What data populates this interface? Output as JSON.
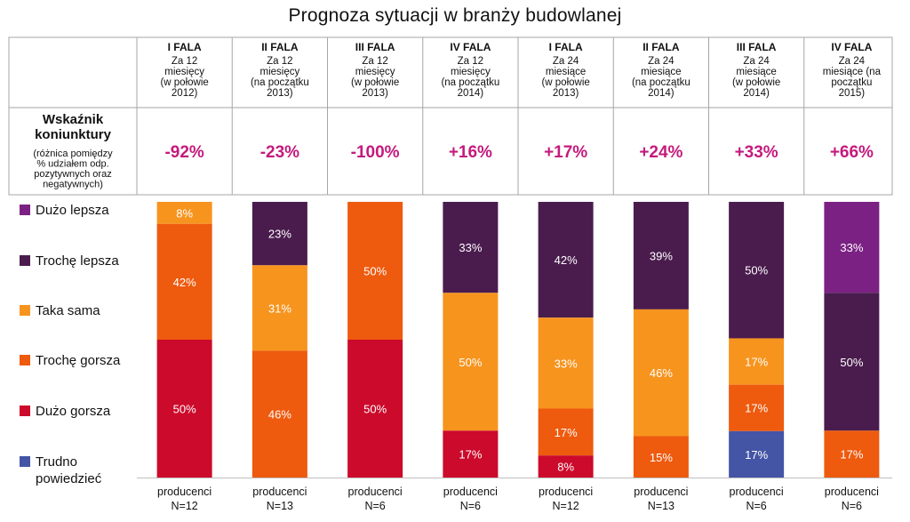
{
  "title": "Prognoza sytuacji w branży budowlanej",
  "chart_data": {
    "type": "bar",
    "stacked": true,
    "normalized_percent": true,
    "title": "Prognoza sytuacji w branży budowlanej",
    "kpi": {
      "title_lines": [
        "Wskaźnik",
        "koniunktury"
      ],
      "note_lines": [
        "(różnica pomiędzy",
        "% udziałem odp.",
        "pozytywnych oraz",
        "negatywnych)"
      ]
    },
    "categories": [
      {
        "wave": "I FALA",
        "sub": [
          "Za 12",
          "miesięcy",
          "(w połowie",
          "2012)"
        ],
        "kpi": "-92%",
        "footer": [
          "producenci",
          "N=12"
        ]
      },
      {
        "wave": "II FALA",
        "sub": [
          "Za 12",
          "miesięcy",
          "(na początku",
          "2013)"
        ],
        "kpi": "-23%",
        "footer": [
          "producenci",
          "N=13"
        ]
      },
      {
        "wave": "III FALA",
        "sub": [
          "Za 12",
          "miesięcy",
          "(w połowie",
          "2013)"
        ],
        "kpi": "-100%",
        "footer": [
          "producenci",
          "N=6"
        ]
      },
      {
        "wave": "IV FALA",
        "sub": [
          "Za 12",
          "miesięcy",
          "(na początku",
          "2014)"
        ],
        "kpi": "+16%",
        "footer": [
          "producenci",
          "N=6"
        ]
      },
      {
        "wave": "I FALA",
        "sub": [
          "Za 24",
          "miesiące",
          "(w połowie",
          "2013)"
        ],
        "kpi": "+17%",
        "footer": [
          "producenci",
          "N=12"
        ]
      },
      {
        "wave": "II FALA",
        "sub": [
          "Za 24",
          "miesiące",
          "(na początku",
          "2014)"
        ],
        "kpi": "+24%",
        "footer": [
          "producenci",
          "N=13"
        ]
      },
      {
        "wave": "III FALA",
        "sub": [
          "Za 24",
          "miesiące",
          "(w połowie",
          "2014)"
        ],
        "kpi": "+33%",
        "footer": [
          "producenci",
          "N=6"
        ]
      },
      {
        "wave": "IV FALA",
        "sub": [
          "Za 24",
          "miesiące (na",
          "początku",
          "2015)"
        ],
        "kpi": "+66%",
        "footer": [
          "producenci",
          "N=6"
        ]
      }
    ],
    "series": [
      {
        "name": "Dużo lepsza",
        "color": "#7b2183",
        "values": [
          0,
          0,
          0,
          0,
          0,
          0,
          0,
          33
        ]
      },
      {
        "name": "Trochę lepsza",
        "color": "#4a1c4e",
        "values": [
          0,
          23,
          0,
          33,
          42,
          39,
          50,
          50
        ]
      },
      {
        "name": "Taka sama",
        "color": "#f7941e",
        "values": [
          8,
          31,
          0,
          50,
          33,
          46,
          17,
          0
        ]
      },
      {
        "name": "Trochę gorsza",
        "color": "#ee5a0e",
        "values": [
          42,
          46,
          50,
          0,
          17,
          15,
          17,
          17
        ]
      },
      {
        "name": "Dużo gorsza",
        "color": "#cc0a2b",
        "values": [
          50,
          0,
          50,
          17,
          8,
          0,
          0,
          0
        ]
      },
      {
        "name": "Trudno powiedzieć",
        "color": "#4455a6",
        "values": [
          0,
          0,
          0,
          0,
          0,
          0,
          17,
          0
        ]
      }
    ],
    "legend": [
      {
        "lines": [
          "Dużo lepsza"
        ],
        "color": "#7b2183"
      },
      {
        "lines": [
          "Trochę lepsza"
        ],
        "color": "#4a1c4e"
      },
      {
        "lines": [
          "Taka sama"
        ],
        "color": "#f7941e"
      },
      {
        "lines": [
          "Trochę gorsza"
        ],
        "color": "#ee5a0e"
      },
      {
        "lines": [
          "Dużo gorsza"
        ],
        "color": "#cc0a2b"
      },
      {
        "lines": [
          "Trudno",
          "powiedzieć"
        ],
        "color": "#4455a6"
      }
    ],
    "kpi_color": "#c51a7d",
    "legend_placement": "left"
  }
}
